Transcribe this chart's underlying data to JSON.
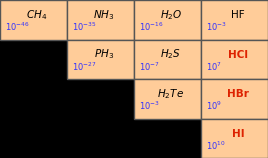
{
  "cells": [
    {
      "row": 0,
      "col": 0,
      "formula": "CH",
      "sub": "4",
      "formula2": "",
      "ka": "-46",
      "text_color": "#3333ff",
      "formula_color": "black"
    },
    {
      "row": 0,
      "col": 1,
      "formula": "NH",
      "sub": "3",
      "formula2": "",
      "ka": "-35",
      "text_color": "#3333ff",
      "formula_color": "black"
    },
    {
      "row": 0,
      "col": 2,
      "formula": "H",
      "sub": "2",
      "formula2": "O",
      "ka": "-16",
      "text_color": "#3333ff",
      "formula_color": "black"
    },
    {
      "row": 0,
      "col": 3,
      "formula": "HF",
      "sub": "",
      "formula2": "",
      "ka": "-3",
      "text_color": "#3333ff",
      "formula_color": "black"
    },
    {
      "row": 1,
      "col": 1,
      "formula": "PH",
      "sub": "3",
      "formula2": "",
      "ka": "-27",
      "text_color": "#3333ff",
      "formula_color": "black"
    },
    {
      "row": 1,
      "col": 2,
      "formula": "H",
      "sub": "2",
      "formula2": "S",
      "ka": "-7",
      "text_color": "#3333ff",
      "formula_color": "black"
    },
    {
      "row": 1,
      "col": 3,
      "formula": "HCl",
      "sub": "",
      "formula2": "",
      "ka": "7",
      "text_color": "#3333ff",
      "formula_color": "#dd2200"
    },
    {
      "row": 2,
      "col": 2,
      "formula": "H",
      "sub": "2",
      "formula2": "Te",
      "ka": "-3",
      "text_color": "#3333ff",
      "formula_color": "black"
    },
    {
      "row": 2,
      "col": 3,
      "formula": "HBr",
      "sub": "",
      "formula2": "",
      "ka": "9",
      "text_color": "#3333ff",
      "formula_color": "#dd2200"
    },
    {
      "row": 3,
      "col": 3,
      "formula": "HI",
      "sub": "",
      "formula2": "",
      "ka": "10",
      "text_color": "#3333ff",
      "formula_color": "#dd2200"
    }
  ],
  "cell_color": "#FFCC99",
  "border_color": "#555555",
  "n_rows": 4,
  "n_cols": 4,
  "fig_bg": "#000000",
  "fig_w": 2.68,
  "fig_h": 1.58,
  "dpi": 100
}
